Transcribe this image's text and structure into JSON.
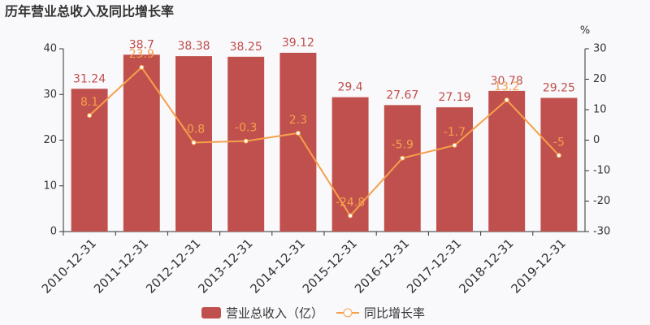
{
  "chart_data": {
    "type": "bar",
    "title": "历年营业总收入及同比增长率",
    "categories": [
      "2010-12-31",
      "2011-12-31",
      "2012-12-31",
      "2013-12-31",
      "2014-12-31",
      "2015-12-31",
      "2016-12-31",
      "2017-12-31",
      "2018-12-31",
      "2019-12-31"
    ],
    "series": [
      {
        "name": "营业总收入（亿）",
        "type": "bar",
        "color": "#c0504e",
        "values": [
          31.24,
          38.7,
          38.38,
          38.25,
          39.12,
          29.4,
          27.67,
          27.19,
          30.78,
          29.25
        ]
      },
      {
        "name": "同比增长率",
        "type": "line",
        "axis": "y2",
        "color": "#f5a04a",
        "values": [
          8.1,
          23.9,
          -0.8,
          -0.3,
          2.3,
          -24.8,
          -5.9,
          -1.7,
          13.2,
          -5
        ]
      }
    ],
    "ylim": [
      0,
      40
    ],
    "yticks": [
      0,
      10,
      20,
      30,
      40
    ],
    "y2lim": [
      -30,
      30
    ],
    "y2ticks": [
      -30,
      -20,
      -10,
      0,
      10,
      20,
      30
    ],
    "y2label": "%"
  }
}
